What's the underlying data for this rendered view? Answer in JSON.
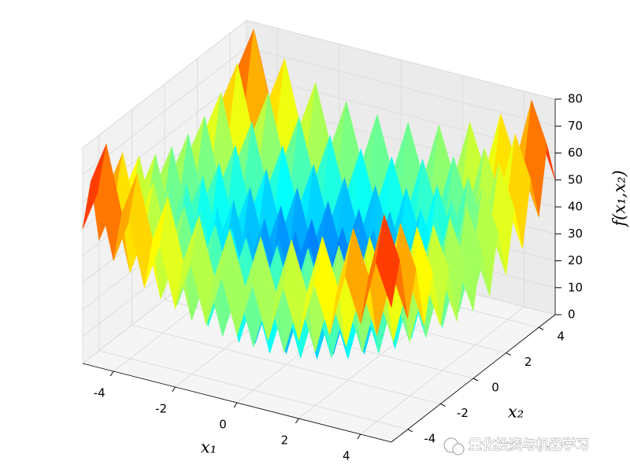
{
  "chart_data": {
    "type": "surface",
    "x": [
      -5,
      -4.5,
      -4,
      -3.5,
      -3,
      -2.5,
      -2,
      -1.5,
      -1,
      -0.5,
      0,
      0.5,
      1,
      1.5,
      2,
      2.5,
      3,
      3.5,
      4,
      4.5,
      5
    ],
    "y": [
      -5,
      -4.5,
      -4,
      -3.5,
      -3,
      -2.5,
      -2,
      -1.5,
      -1,
      -0.5,
      0,
      0.5,
      1,
      1.5,
      2,
      2.5,
      3,
      3.5,
      4,
      4.5,
      5
    ],
    "z": [
      [
        50,
        65.25,
        41,
        57.25,
        34,
        51.25,
        29,
        47.25,
        26,
        45.25,
        25,
        45.25,
        26,
        47.25,
        29,
        51.25,
        34,
        57.25,
        41,
        65.25,
        50
      ],
      [
        65.25,
        80.5,
        56.25,
        72.5,
        49.25,
        66.5,
        44.25,
        62.5,
        41.25,
        60.5,
        40.25,
        60.5,
        41.25,
        62.5,
        44.25,
        66.5,
        49.25,
        72.5,
        56.25,
        80.5,
        65.25
      ],
      [
        41,
        56.25,
        32,
        48.25,
        25,
        42.25,
        20,
        38.25,
        17,
        36.25,
        16,
        36.25,
        17,
        38.25,
        20,
        42.25,
        25,
        48.25,
        32,
        56.25,
        41
      ],
      [
        57.25,
        72.5,
        48.25,
        64.5,
        41.25,
        58.5,
        36.25,
        54.5,
        33.25,
        52.5,
        32.25,
        52.5,
        33.25,
        54.5,
        36.25,
        58.5,
        41.25,
        64.5,
        48.25,
        72.5,
        57.25
      ],
      [
        34,
        49.25,
        25,
        41.25,
        18,
        35.25,
        13,
        31.25,
        10,
        29.25,
        9,
        29.25,
        10,
        31.25,
        13,
        35.25,
        18,
        41.25,
        25,
        49.25,
        34
      ],
      [
        51.25,
        66.5,
        42.25,
        58.5,
        35.25,
        52.5,
        30.25,
        48.5,
        27.25,
        46.5,
        26.25,
        46.5,
        27.25,
        48.5,
        30.25,
        52.5,
        35.25,
        58.5,
        42.25,
        66.5,
        51.25
      ],
      [
        29,
        44.25,
        20,
        36.25,
        13,
        30.25,
        8,
        26.25,
        5,
        24.25,
        4,
        24.25,
        5,
        26.25,
        8,
        30.25,
        13,
        36.25,
        20,
        44.25,
        29
      ],
      [
        47.25,
        62.5,
        38.25,
        54.5,
        31.25,
        48.5,
        26.25,
        44.5,
        23.25,
        42.5,
        22.25,
        42.5,
        23.25,
        44.5,
        26.25,
        48.5,
        31.25,
        54.5,
        38.25,
        62.5,
        47.25
      ],
      [
        26,
        41.25,
        17,
        33.25,
        10,
        27.25,
        5,
        23.25,
        2,
        21.25,
        1,
        21.25,
        2,
        23.25,
        5,
        27.25,
        10,
        33.25,
        17,
        41.25,
        26
      ],
      [
        45.25,
        60.5,
        36.25,
        52.5,
        29.25,
        46.5,
        24.25,
        42.5,
        21.25,
        40.5,
        20.25,
        40.5,
        21.25,
        42.5,
        24.25,
        46.5,
        29.25,
        52.5,
        36.25,
        60.5,
        45.25
      ],
      [
        25,
        40.25,
        16,
        32.25,
        9,
        26.25,
        4,
        22.25,
        1,
        20.25,
        0,
        20.25,
        1,
        22.25,
        4,
        26.25,
        9,
        32.25,
        16,
        40.25,
        25
      ],
      [
        45.25,
        60.5,
        36.25,
        52.5,
        29.25,
        46.5,
        24.25,
        42.5,
        21.25,
        40.5,
        20.25,
        40.5,
        21.25,
        42.5,
        24.25,
        46.5,
        29.25,
        52.5,
        36.25,
        60.5,
        45.25
      ],
      [
        26,
        41.25,
        17,
        33.25,
        10,
        27.25,
        5,
        23.25,
        2,
        21.25,
        1,
        21.25,
        2,
        23.25,
        5,
        27.25,
        10,
        33.25,
        17,
        41.25,
        26
      ],
      [
        47.25,
        62.5,
        38.25,
        54.5,
        31.25,
        48.5,
        26.25,
        44.5,
        23.25,
        42.5,
        22.25,
        42.5,
        23.25,
        44.5,
        26.25,
        48.5,
        31.25,
        54.5,
        38.25,
        62.5,
        47.25
      ],
      [
        29,
        44.25,
        20,
        36.25,
        13,
        30.25,
        8,
        26.25,
        5,
        24.25,
        4,
        24.25,
        5,
        26.25,
        8,
        30.25,
        13,
        36.25,
        20,
        44.25,
        29
      ],
      [
        51.25,
        66.5,
        42.25,
        58.5,
        35.25,
        52.5,
        30.25,
        48.5,
        27.25,
        46.5,
        26.25,
        46.5,
        27.25,
        48.5,
        30.25,
        52.5,
        35.25,
        58.5,
        42.25,
        66.5,
        51.25
      ],
      [
        34,
        49.25,
        25,
        41.25,
        18,
        35.25,
        13,
        31.25,
        10,
        29.25,
        9,
        29.25,
        10,
        31.25,
        13,
        35.25,
        18,
        41.25,
        25,
        49.25,
        34
      ],
      [
        57.25,
        72.5,
        48.25,
        64.5,
        41.25,
        58.5,
        36.25,
        54.5,
        33.25,
        52.5,
        32.25,
        52.5,
        33.25,
        54.5,
        36.25,
        58.5,
        41.25,
        64.5,
        48.25,
        72.5,
        57.25
      ],
      [
        41,
        56.25,
        32,
        48.25,
        25,
        42.25,
        20,
        38.25,
        17,
        36.25,
        16,
        36.25,
        17,
        38.25,
        20,
        42.25,
        25,
        48.25,
        32,
        56.25,
        41
      ],
      [
        65.25,
        80.5,
        56.25,
        72.5,
        49.25,
        66.5,
        44.25,
        62.5,
        41.25,
        60.5,
        40.25,
        60.5,
        41.25,
        62.5,
        44.25,
        66.5,
        49.25,
        72.5,
        56.25,
        80.5,
        65.25
      ],
      [
        50,
        65.25,
        41,
        57.25,
        34,
        51.25,
        29,
        47.25,
        26,
        45.25,
        25,
        45.25,
        26,
        47.25,
        29,
        51.25,
        34,
        57.25,
        41,
        65.25,
        50
      ]
    ],
    "xlabel": "x₁",
    "ylabel": "x₂",
    "zlabel": "f(x₁,x₂)",
    "xlim": [
      -5,
      5
    ],
    "ylim": [
      -5,
      5
    ],
    "zlim": [
      0,
      80
    ],
    "xticks": [
      -4,
      -2,
      0,
      2,
      4
    ],
    "yticks": [
      -4,
      -2,
      0,
      2,
      4
    ],
    "zticks": [
      0,
      10,
      20,
      30,
      40,
      50,
      60,
      70,
      80
    ],
    "colormap": "jet",
    "grid": true,
    "watermark": "量化投资与机器学习"
  }
}
